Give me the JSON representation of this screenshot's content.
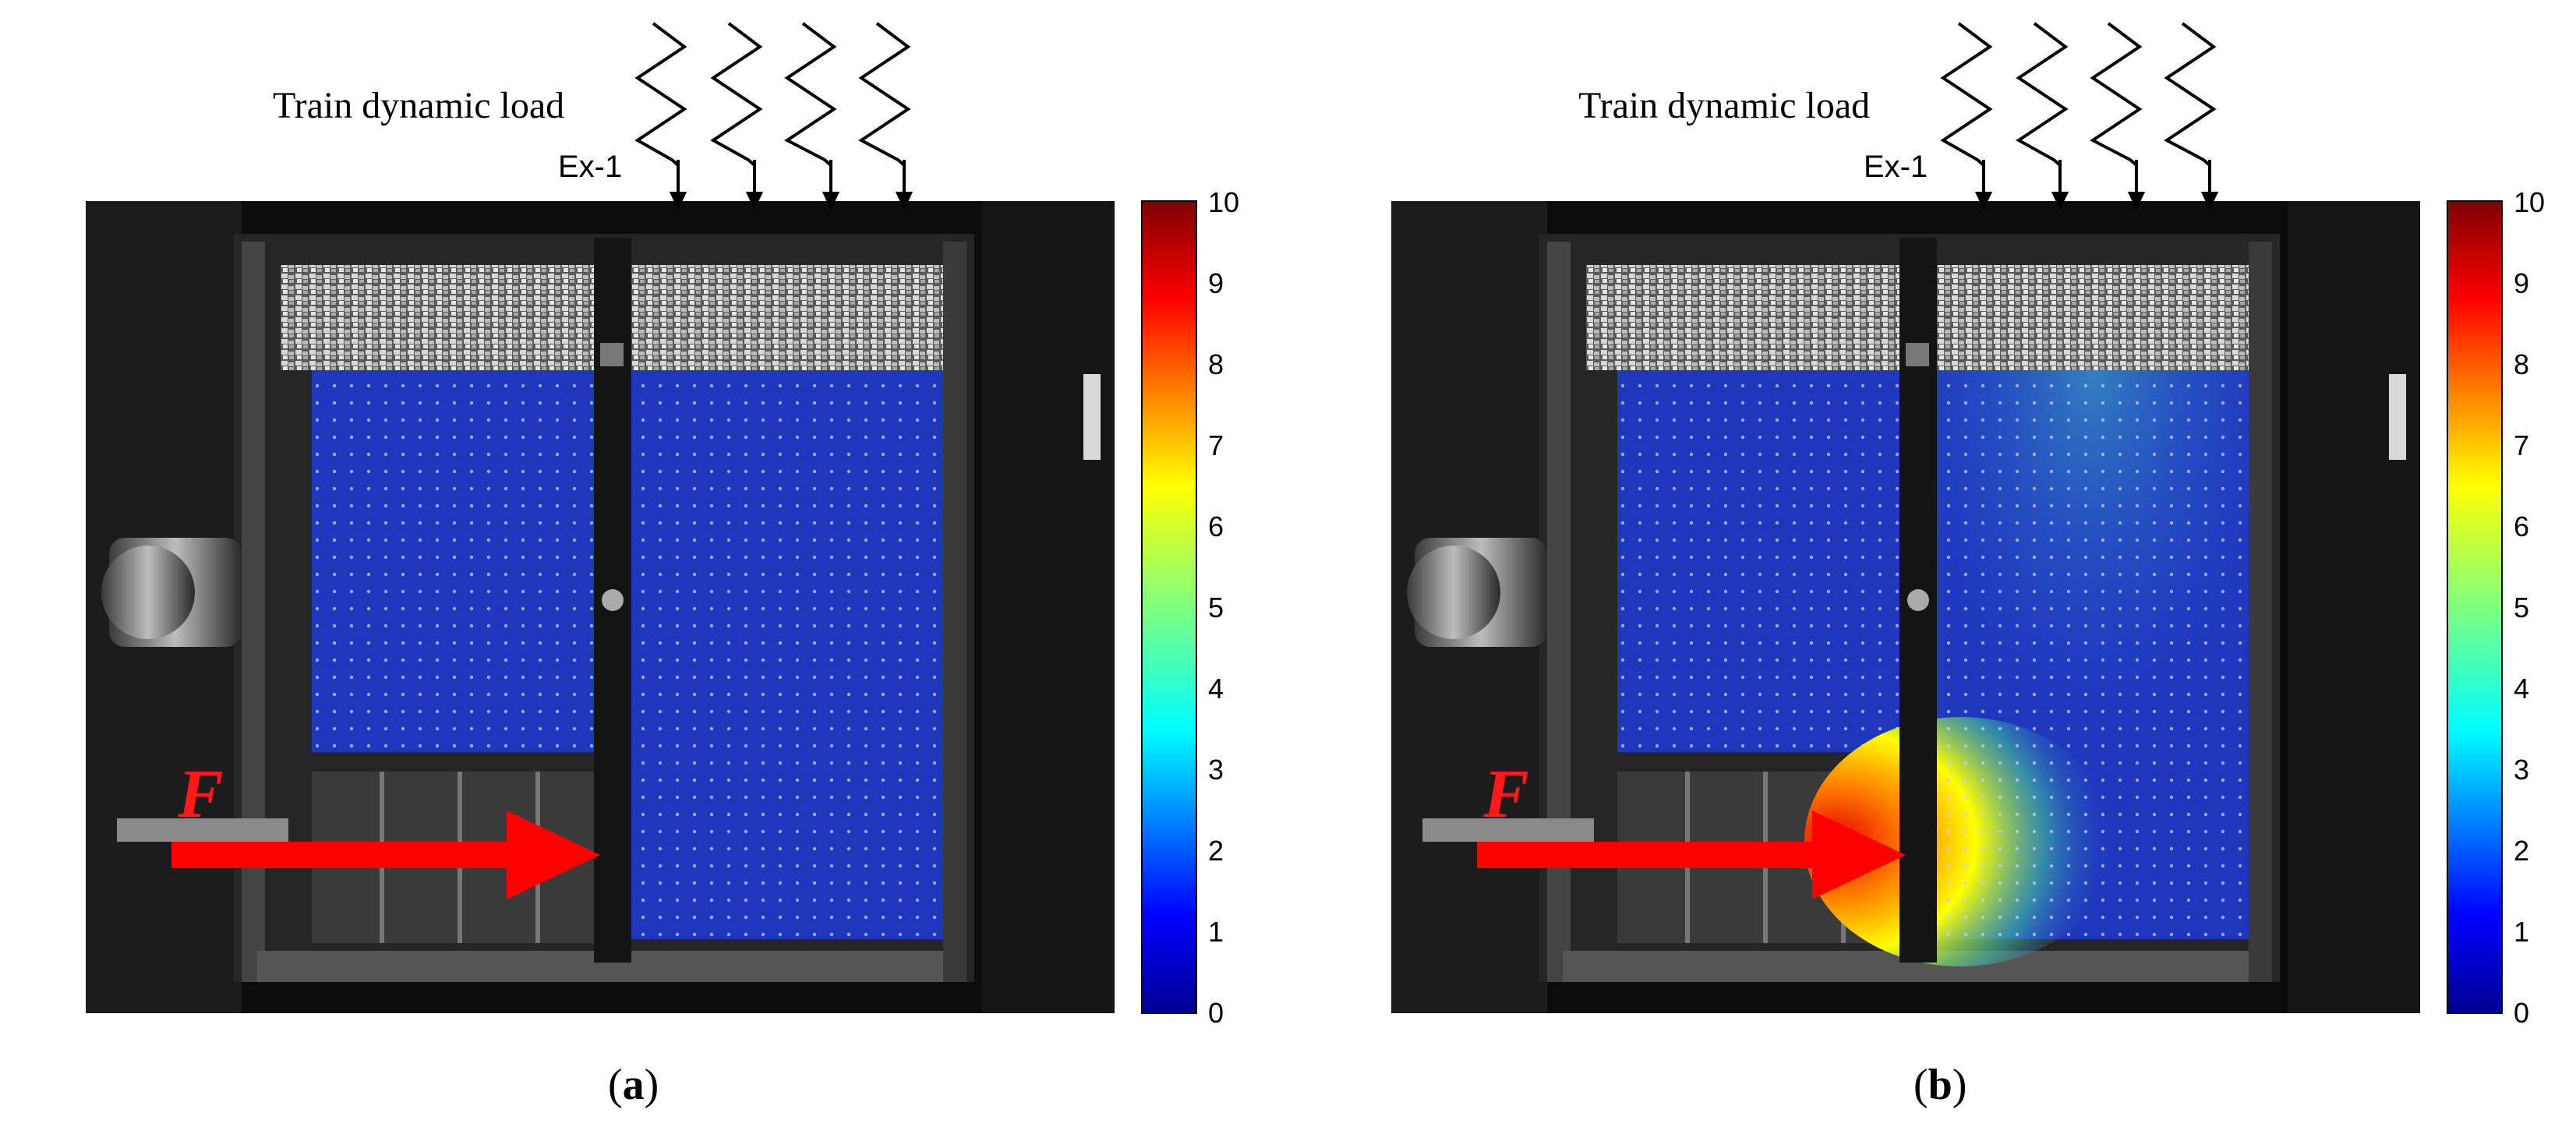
{
  "figure": {
    "panels": [
      {
        "id": "a",
        "load_label": "Train dynamic load",
        "specimen_label": "Ex-1",
        "force_label": "F",
        "caption_letter": "a",
        "colorbar": {
          "min": 0,
          "max": 10,
          "ticks": [
            "10",
            "9",
            "8",
            "7",
            "6",
            "5",
            "4",
            "3",
            "2",
            "1",
            "0"
          ]
        },
        "hotspot_level": 0
      },
      {
        "id": "b",
        "load_label": "Train dynamic load",
        "specimen_label": "Ex-1",
        "force_label": "F",
        "caption_letter": "b",
        "colorbar": {
          "min": 0,
          "max": 10,
          "ticks": [
            "10",
            "9",
            "8",
            "7",
            "6",
            "5",
            "4",
            "3",
            "2",
            "1",
            "0"
          ]
        },
        "hotspot_level": 8
      }
    ]
  }
}
